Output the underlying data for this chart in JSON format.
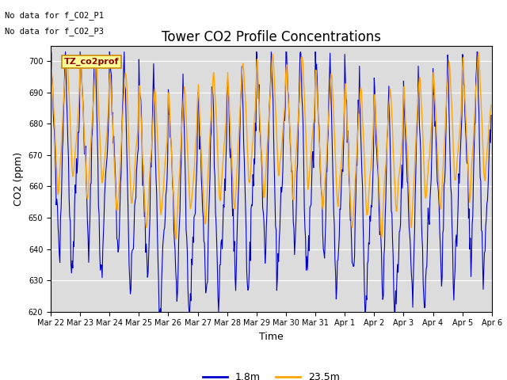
{
  "title": "Tower CO2 Profile Concentrations",
  "xlabel": "Time",
  "ylabel": "CO2 (ppm)",
  "ylim": [
    620,
    705
  ],
  "yticks": [
    620,
    630,
    640,
    650,
    660,
    670,
    680,
    690,
    700
  ],
  "annotations": [
    "No data for f_CO2_P1",
    "No data for f_CO2_P3"
  ],
  "box_label": "TZ_co2prof",
  "legend_labels": [
    "1.8m",
    "23.5m"
  ],
  "line_colors": [
    "#0000cc",
    "#ffa500"
  ],
  "xtick_labels": [
    "Mar 22",
    "Mar 23",
    "Mar 24",
    "Mar 25",
    "Mar 26",
    "Mar 27",
    "Mar 28",
    "Mar 29",
    "Mar 30",
    "Mar 31",
    "Apr 1",
    "Apr 2",
    "Apr 3",
    "Apr 4",
    "Apr 5",
    "Apr 6"
  ],
  "background_color": "#dcdcdc",
  "title_fontsize": 12,
  "label_fontsize": 9,
  "tick_fontsize": 7
}
